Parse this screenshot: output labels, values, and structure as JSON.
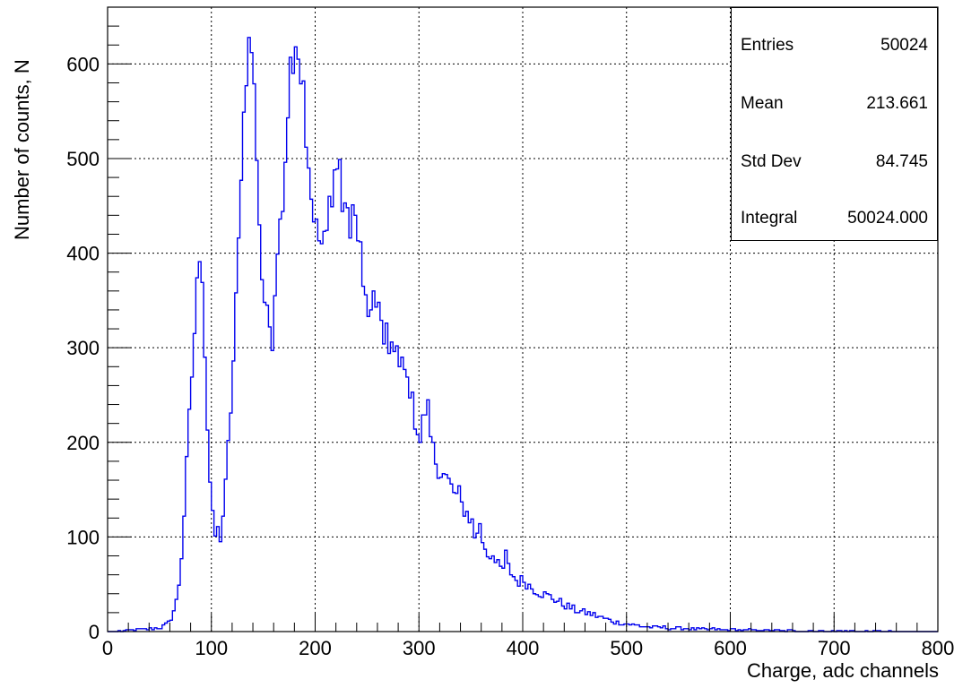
{
  "chart_data": {
    "type": "bar",
    "subtype": "histogram",
    "xlabel": "Charge, adc channels",
    "ylabel": "Number of counts, N",
    "xlim": [
      0,
      800
    ],
    "ylim": [
      0,
      660
    ],
    "bin_width": 2.5,
    "x_ticks": [
      0,
      100,
      200,
      300,
      400,
      500,
      600,
      700,
      800
    ],
    "y_ticks": [
      0,
      100,
      200,
      300,
      400,
      500,
      600
    ],
    "grid": true,
    "line_color": "#0000ee",
    "keypoints": [
      [
        10,
        0
      ],
      [
        15,
        1
      ],
      [
        30,
        2
      ],
      [
        40,
        3
      ],
      [
        50,
        4
      ],
      [
        55,
        6
      ],
      [
        60,
        10
      ],
      [
        63,
        20
      ],
      [
        66,
        30
      ],
      [
        70,
        60
      ],
      [
        73,
        110
      ],
      [
        76,
        170
      ],
      [
        79,
        230
      ],
      [
        82,
        285
      ],
      [
        85,
        340
      ],
      [
        88,
        395
      ],
      [
        90,
        415
      ],
      [
        92,
        360
      ],
      [
        95,
        250
      ],
      [
        98,
        170
      ],
      [
        101,
        120
      ],
      [
        104,
        100
      ],
      [
        107,
        108
      ],
      [
        110,
        112
      ],
      [
        113,
        140
      ],
      [
        116,
        190
      ],
      [
        119,
        240
      ],
      [
        122,
        300
      ],
      [
        125,
        380
      ],
      [
        128,
        450
      ],
      [
        131,
        540
      ],
      [
        134,
        600
      ],
      [
        137,
        615
      ],
      [
        140,
        600
      ],
      [
        143,
        530
      ],
      [
        146,
        440
      ],
      [
        149,
        370
      ],
      [
        152,
        345
      ],
      [
        155,
        320
      ],
      [
        158,
        330
      ],
      [
        161,
        360
      ],
      [
        164,
        400
      ],
      [
        167,
        440
      ],
      [
        170,
        480
      ],
      [
        173,
        540
      ],
      [
        176,
        590
      ],
      [
        179,
        620
      ],
      [
        182,
        600
      ],
      [
        185,
        590
      ],
      [
        188,
        560
      ],
      [
        191,
        510
      ],
      [
        194,
        480
      ],
      [
        197,
        475
      ],
      [
        200,
        450
      ],
      [
        204,
        410
      ],
      [
        208,
        400
      ],
      [
        212,
        430
      ],
      [
        216,
        460
      ],
      [
        220,
        470
      ],
      [
        224,
        480
      ],
      [
        228,
        450
      ],
      [
        232,
        440
      ],
      [
        236,
        440
      ],
      [
        240,
        430
      ],
      [
        244,
        400
      ],
      [
        248,
        360
      ],
      [
        252,
        340
      ],
      [
        256,
        335
      ],
      [
        260,
        330
      ],
      [
        265,
        320
      ],
      [
        270,
        310
      ],
      [
        275,
        300
      ],
      [
        280,
        290
      ],
      [
        285,
        275
      ],
      [
        290,
        255
      ],
      [
        295,
        235
      ],
      [
        300,
        205
      ],
      [
        305,
        225
      ],
      [
        310,
        210
      ],
      [
        315,
        185
      ],
      [
        320,
        170
      ],
      [
        325,
        165
      ],
      [
        330,
        155
      ],
      [
        335,
        145
      ],
      [
        340,
        135
      ],
      [
        345,
        128
      ],
      [
        350,
        118
      ],
      [
        355,
        110
      ],
      [
        360,
        100
      ],
      [
        365,
        85
      ],
      [
        370,
        78
      ],
      [
        375,
        70
      ],
      [
        380,
        65
      ],
      [
        385,
        70
      ],
      [
        390,
        60
      ],
      [
        395,
        52
      ],
      [
        400,
        55
      ],
      [
        405,
        50
      ],
      [
        410,
        45
      ],
      [
        420,
        40
      ],
      [
        430,
        35
      ],
      [
        440,
        28
      ],
      [
        450,
        23
      ],
      [
        460,
        20
      ],
      [
        470,
        17
      ],
      [
        480,
        13
      ],
      [
        490,
        10
      ],
      [
        500,
        8
      ],
      [
        520,
        5
      ],
      [
        540,
        4
      ],
      [
        560,
        3
      ],
      [
        600,
        2
      ],
      [
        650,
        1
      ],
      [
        700,
        0.5
      ],
      [
        760,
        0
      ]
    ],
    "spikes": [
      [
        111,
        -10
      ],
      [
        131,
        20
      ],
      [
        137,
        8
      ],
      [
        140,
        10
      ],
      [
        160,
        -25
      ],
      [
        165,
        15
      ],
      [
        178,
        18
      ],
      [
        181,
        -15
      ],
      [
        184,
        12
      ],
      [
        189,
        20
      ],
      [
        201,
        -30
      ],
      [
        211,
        25
      ],
      [
        219,
        20
      ],
      [
        225,
        15
      ],
      [
        235,
        -20
      ],
      [
        248,
        -30
      ],
      [
        258,
        20
      ],
      [
        262,
        18
      ],
      [
        276,
        12
      ],
      [
        287,
        15
      ],
      [
        295,
        15
      ],
      [
        302,
        -15
      ],
      [
        311,
        18
      ],
      [
        340,
        8
      ],
      [
        356,
        -12
      ],
      [
        360,
        8
      ],
      [
        372,
        10
      ],
      [
        385,
        12
      ]
    ],
    "stats": [
      {
        "label": "Entries",
        "value": "50024"
      },
      {
        "label": "Mean",
        "value": "213.661"
      },
      {
        "label": "Std Dev",
        "value": "84.745"
      },
      {
        "label": "Integral",
        "value": "50024.000"
      }
    ]
  }
}
